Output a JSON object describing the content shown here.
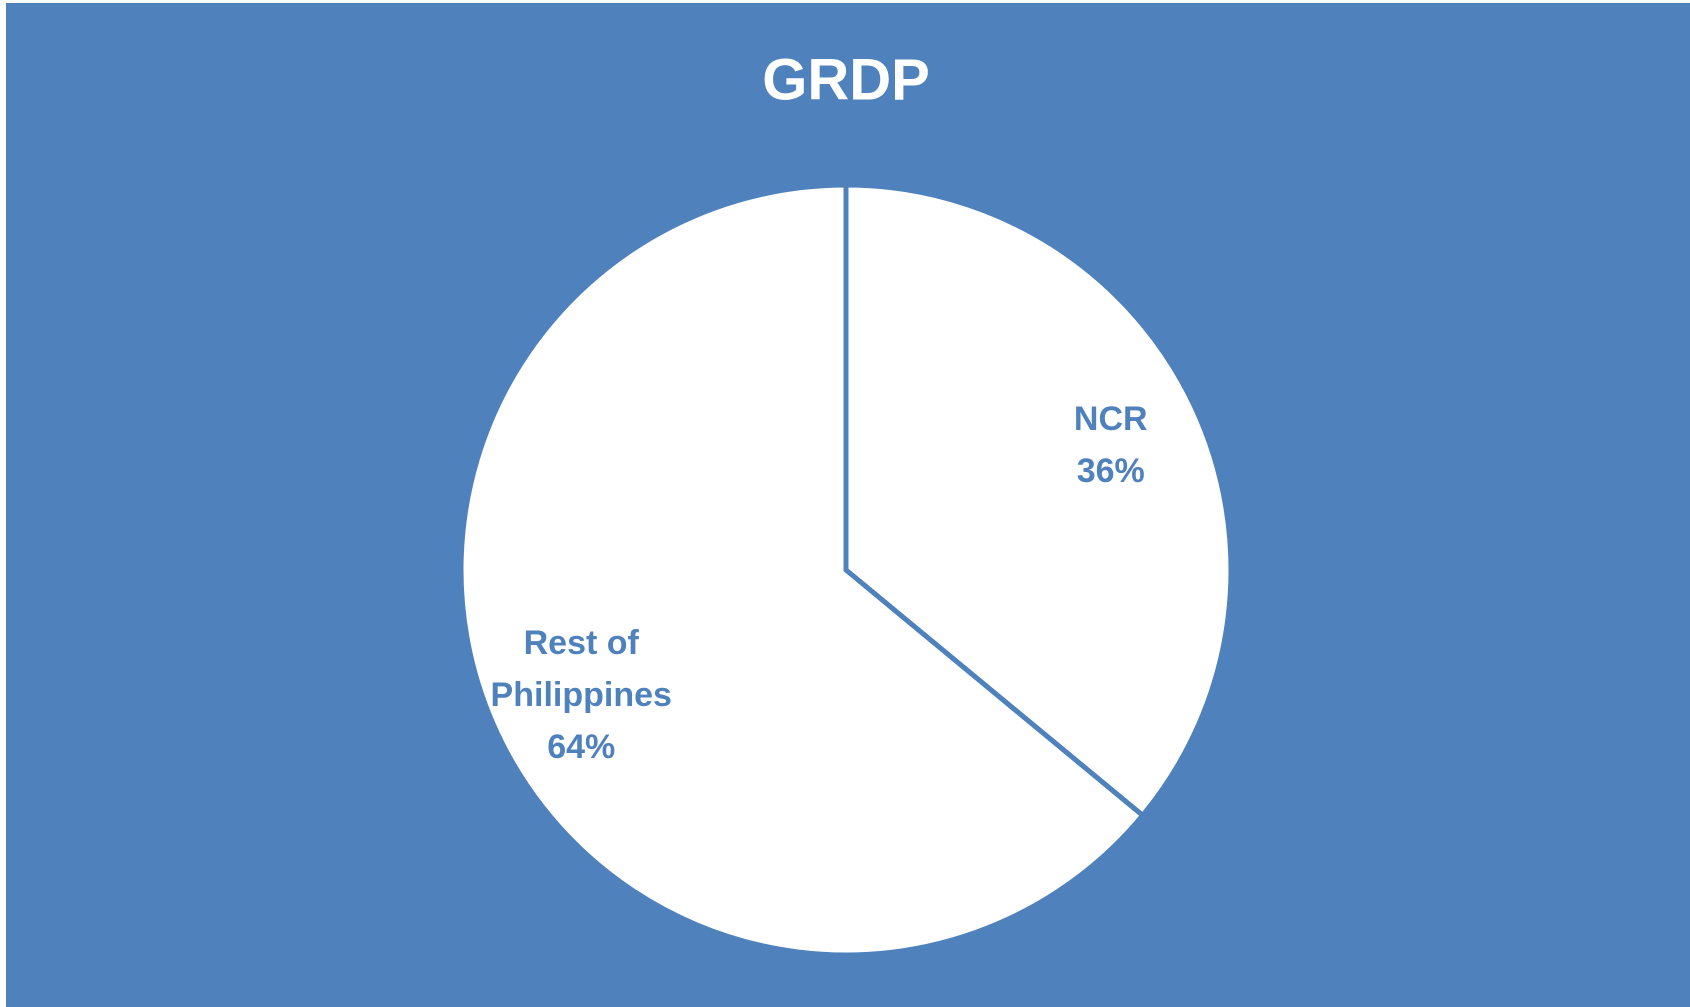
{
  "chart_data": {
    "type": "pie",
    "title": "GRDP",
    "categories": [
      "NCR",
      "Rest of Philippines"
    ],
    "values": [
      36,
      64
    ],
    "value_labels": [
      "36%",
      "64%"
    ],
    "color": "#ffffff",
    "background": "#4f81bd",
    "label_color": "#4f81bd"
  }
}
